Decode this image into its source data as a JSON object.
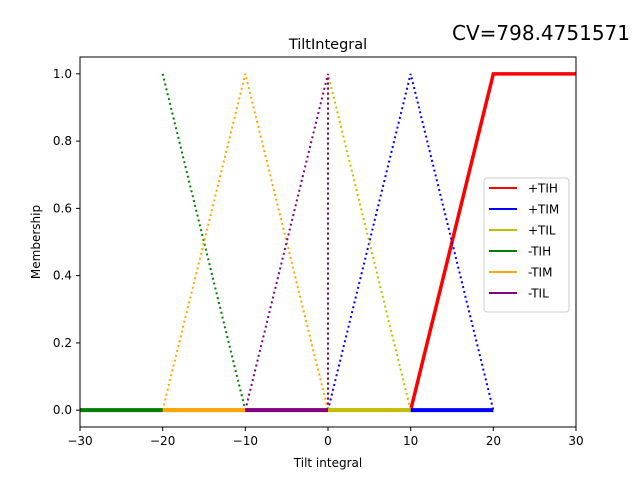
{
  "chart_data": {
    "type": "line",
    "title": "TiltIntegral",
    "annotation": "CV=798.4751571",
    "xlabel": "Tilt integral",
    "ylabel": "Membership",
    "xlim": [
      -30,
      30
    ],
    "ylim": [
      -0.05,
      1.05
    ],
    "xticks": [
      -30,
      -20,
      -10,
      0,
      10,
      20,
      30
    ],
    "xtick_labels": [
      "−30",
      "−20",
      "−10",
      "0",
      "10",
      "20",
      "30"
    ],
    "yticks": [
      0.0,
      0.2,
      0.4,
      0.6,
      0.8,
      1.0
    ],
    "ytick_labels": [
      "0.0",
      "0.2",
      "0.4",
      "0.6",
      "0.8",
      "1.0"
    ],
    "grid": false,
    "legend_position": "center-right",
    "series": [
      {
        "name": "+TIH",
        "color": "#ff0000",
        "style": "solid",
        "x": [
          -30,
          10,
          20,
          30
        ],
        "y": [
          0,
          0,
          1,
          1
        ]
      },
      {
        "name": "+TIM",
        "color": "#0000ff",
        "style": "dotted",
        "x": [
          0,
          10,
          20
        ],
        "y": [
          0,
          1,
          0
        ]
      },
      {
        "name": "+TIL",
        "color": "#bfbf00",
        "style": "dotted",
        "x": [
          0,
          0,
          10
        ],
        "y": [
          0,
          1,
          0
        ]
      },
      {
        "name": "-TIH",
        "color": "#008000",
        "style": "dotted",
        "x": [
          -20,
          -10
        ],
        "y": [
          1,
          0
        ]
      },
      {
        "name": "-TIM",
        "color": "#ffa500",
        "style": "dotted",
        "x": [
          -20,
          -10,
          0
        ],
        "y": [
          0,
          1,
          0
        ]
      },
      {
        "name": "-TIL",
        "color": "#800080",
        "style": "dotted",
        "x": [
          -10,
          0,
          0
        ],
        "y": [
          0,
          1,
          0
        ]
      }
    ],
    "active_segments": [
      {
        "series": "+TIM",
        "color": "#0000ff",
        "x": [
          10,
          20
        ],
        "y": [
          0,
          0
        ]
      },
      {
        "series": "+TIL",
        "color": "#bfbf00",
        "x": [
          0,
          10
        ],
        "y": [
          0,
          0
        ]
      },
      {
        "series": "-TIM",
        "color": "#ffa500",
        "x": [
          -20,
          -10
        ],
        "y": [
          0,
          0
        ]
      },
      {
        "series": "-TIL",
        "color": "#800080",
        "x": [
          -10,
          0
        ],
        "y": [
          0,
          0
        ]
      },
      {
        "series": "-TIH",
        "color": "#008000",
        "x": [
          -30,
          -20
        ],
        "y": [
          0,
          0
        ]
      }
    ]
  }
}
